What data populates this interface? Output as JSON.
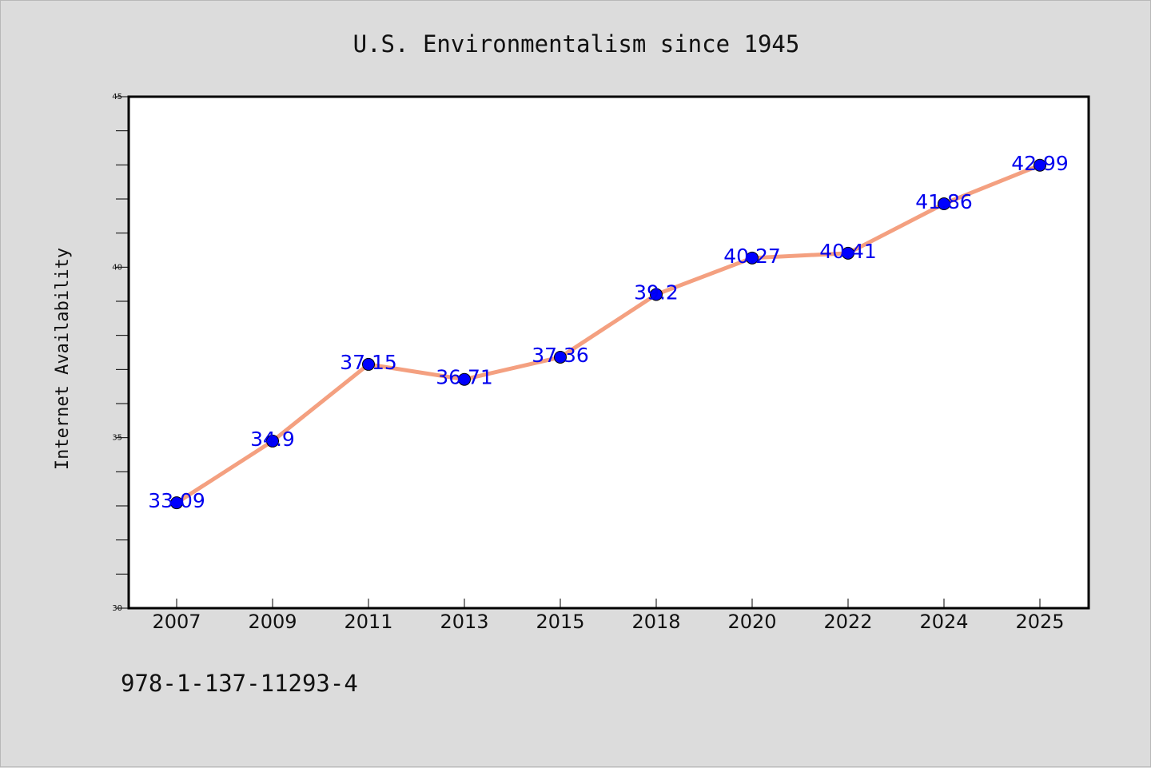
{
  "chart_data": {
    "type": "line",
    "title": "U.S. Environmentalism since 1945",
    "ylabel": "Internet Availability",
    "xlabel": "",
    "categories": [
      "2007",
      "2009",
      "2011",
      "2013",
      "2015",
      "2018",
      "2020",
      "2022",
      "2024",
      "2025"
    ],
    "series": [
      {
        "values": [
          33.09,
          34.9,
          37.15,
          36.71,
          37.36,
          39.2,
          40.27,
          40.41,
          41.86,
          42.99
        ]
      }
    ],
    "data_labels": [
      "33.09",
      "34.9",
      "37.15",
      "36.71",
      "37.36",
      "39.2",
      "40.27",
      "40.41",
      "41.86",
      "42.99"
    ],
    "ylim": [
      30,
      45
    ],
    "yticks": [
      30,
      35,
      40,
      45
    ],
    "grid": false,
    "legend": "none",
    "colors": {
      "line": "#f4a080",
      "marker": "#0000ff",
      "data_label": "#0000ee",
      "background": "#dcdcdc",
      "plot_background": "#ffffff"
    }
  },
  "annotation": {
    "isbn": "978-1-137-11293-4"
  }
}
